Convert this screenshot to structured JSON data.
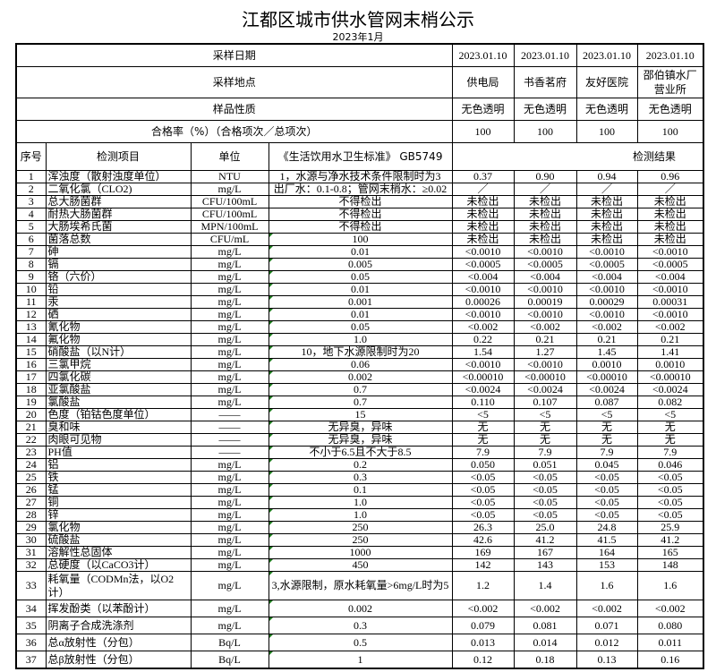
{
  "title": "江都区城市供水管网末梢公示",
  "subtitle": "2023年1月",
  "header": {
    "sample_date_label": "采样日期",
    "sample_dates": [
      "2023.01.10",
      "2023.01.10",
      "2023.01.10",
      "2023.01.10"
    ],
    "sample_site_label": "采样地点",
    "sample_sites": [
      "供电局",
      "书香茗府",
      "友好医院",
      "邵伯镇水厂营业所"
    ],
    "sample_nature_label": "样品性质",
    "sample_natures": [
      "无色透明",
      "无色透明",
      "无色透明",
      "无色透明"
    ],
    "pass_rate_label": "合格率（%）（合格项次／总项次）",
    "pass_rates": [
      "100",
      "100",
      "100",
      "100"
    ],
    "col_seq": "序号",
    "col_item": "检测项目",
    "col_unit": "单位",
    "col_standard": "《生活饮用水卫生标准》 GB5749",
    "col_results": "检测结果"
  },
  "rows": [
    {
      "n": "1",
      "item": "浑浊度（散射浊度单位）",
      "unit": "NTU",
      "std": "1，水源与净水技术条件限制时为3",
      "r": [
        "0.37",
        "0.90",
        "0.94",
        "0.96"
      ]
    },
    {
      "n": "2",
      "item": "二氧化氯（CLO2)",
      "unit": "mg/L",
      "std": "出厂水：0.1-0.8；管网末梢水：≥0.02",
      "r": [
        "／",
        "／",
        "／",
        "／"
      ]
    },
    {
      "n": "3",
      "item": "总大肠菌群",
      "unit": "CFU/100mL",
      "std": "不得检出",
      "r": [
        "未检出",
        "未检出",
        "未检出",
        "未检出"
      ]
    },
    {
      "n": "4",
      "item": "耐热大肠菌群",
      "unit": "CFU/100mL",
      "std": "不得检出",
      "r": [
        "未检出",
        "未检出",
        "未检出",
        "未检出"
      ]
    },
    {
      "n": "5",
      "item": "大肠埃希氏菌",
      "unit": "MPN/100mL",
      "std": "不得检出",
      "r": [
        "未检出",
        "未检出",
        "未检出",
        "未检出"
      ]
    },
    {
      "n": "6",
      "item": "菌落总数",
      "unit": "CFU/mL",
      "std": "100",
      "r": [
        "未检出",
        "未检出",
        "未检出",
        "未检出"
      ]
    },
    {
      "n": "7",
      "item": "砷",
      "unit": "mg/L",
      "std": "0.01",
      "r": [
        "<0.0010",
        "<0.0010",
        "<0.0010",
        "<0.0010"
      ]
    },
    {
      "n": "8",
      "item": "镉",
      "unit": "mg/L",
      "std": "0.005",
      "r": [
        "<0.0005",
        "<0.0005",
        "<0.0005",
        "<0.0005"
      ]
    },
    {
      "n": "9",
      "item": "铬（六价）",
      "unit": "mg/L",
      "std": "0.05",
      "r": [
        "<0.004",
        "<0.004",
        "<0.004",
        "<0.004"
      ]
    },
    {
      "n": "10",
      "item": "铅",
      "unit": "mg/L",
      "std": "0.01",
      "r": [
        "<0.0010",
        "<0.0010",
        "<0.0010",
        "<0.0010"
      ]
    },
    {
      "n": "11",
      "item": "汞",
      "unit": "mg/L",
      "std": "0.001",
      "r": [
        "0.00026",
        "0.00019",
        "0.00029",
        "0.00031"
      ]
    },
    {
      "n": "12",
      "item": "硒",
      "unit": "mg/L",
      "std": "0.01",
      "r": [
        "<0.0010",
        "<0.0010",
        "<0.0010",
        "<0.0010"
      ]
    },
    {
      "n": "13",
      "item": "氰化物",
      "unit": "mg/L",
      "std": "0.05",
      "r": [
        "<0.002",
        "<0.002",
        "<0.002",
        "<0.002"
      ]
    },
    {
      "n": "14",
      "item": "氟化物",
      "unit": "mg/L",
      "std": "1.0",
      "r": [
        "0.22",
        "0.21",
        "0.21",
        "0.21"
      ]
    },
    {
      "n": "15",
      "item": "硝酸盐（以N计）",
      "unit": "mg/L",
      "std": "10，地下水源限制时为20",
      "r": [
        "1.54",
        "1.27",
        "1.45",
        "1.41"
      ]
    },
    {
      "n": "16",
      "item": "三氯甲烷",
      "unit": "mg/L",
      "std": "0.06",
      "r": [
        "<0.0010",
        "<0.0010",
        "0.0010",
        "0.0010"
      ]
    },
    {
      "n": "17",
      "item": "四氯化碳",
      "unit": "mg/L",
      "std": "0.002",
      "r": [
        "<0.00010",
        "<0.00010",
        "<0.00010",
        "<0.00010"
      ]
    },
    {
      "n": "18",
      "item": "亚氯酸盐",
      "unit": "mg/L",
      "std": "0.7",
      "r": [
        "<0.0024",
        "<0.0024",
        "<0.0024",
        "<0.0024"
      ]
    },
    {
      "n": "19",
      "item": "氯酸盐",
      "unit": "mg/L",
      "std": "0.7",
      "r": [
        "0.110",
        "0.107",
        "0.087",
        "0.082"
      ]
    },
    {
      "n": "20",
      "item": "色度（铂钴色度单位）",
      "unit": "——",
      "std": "15",
      "r": [
        "<5",
        "<5",
        "<5",
        "<5"
      ]
    },
    {
      "n": "21",
      "item": "臭和味",
      "unit": "——",
      "std": "无异臭，异味",
      "r": [
        "无",
        "无",
        "无",
        "无"
      ]
    },
    {
      "n": "22",
      "item": "肉眼可见物",
      "unit": "——",
      "std": "无异臭，异味",
      "r": [
        "无",
        "无",
        "无",
        "无"
      ]
    },
    {
      "n": "23",
      "item": "PH值",
      "unit": "——",
      "std": "不小于6.5且不大于8.5",
      "r": [
        "7.9",
        "7.9",
        "7.9",
        "7.9"
      ]
    },
    {
      "n": "24",
      "item": "铝",
      "unit": "mg/L",
      "std": "0.2",
      "r": [
        "0.050",
        "0.051",
        "0.045",
        "0.046"
      ]
    },
    {
      "n": "25",
      "item": "铁",
      "unit": "mg/L",
      "std": "0.3",
      "r": [
        "<0.05",
        "<0.05",
        "<0.05",
        "<0.05"
      ]
    },
    {
      "n": "26",
      "item": "锰",
      "unit": "mg/L",
      "std": "0.1",
      "r": [
        "<0.05",
        "<0.05",
        "<0.05",
        "<0.05"
      ]
    },
    {
      "n": "27",
      "item": "铜",
      "unit": "mg/L",
      "std": "1.0",
      "r": [
        "<0.05",
        "<0.05",
        "<0.05",
        "<0.05"
      ]
    },
    {
      "n": "28",
      "item": "锌",
      "unit": "mg/L",
      "std": "1.0",
      "r": [
        "<0.05",
        "<0.05",
        "<0.05",
        "<0.05"
      ]
    },
    {
      "n": "29",
      "item": "氯化物",
      "unit": "mg/L",
      "std": "250",
      "r": [
        "26.3",
        "25.0",
        "24.8",
        "25.9"
      ]
    },
    {
      "n": "30",
      "item": "硫酸盐",
      "unit": "mg/L",
      "std": "250",
      "r": [
        "42.6",
        "41.2",
        "41.5",
        "41.2"
      ]
    },
    {
      "n": "31",
      "item": "溶解性总固体",
      "unit": "mg/L",
      "std": "1000",
      "r": [
        "169",
        "167",
        "164",
        "165"
      ]
    },
    {
      "n": "32",
      "item": "总硬度（以CaCO3计）",
      "unit": "mg/L",
      "std": "450",
      "r": [
        "142",
        "143",
        "153",
        "148"
      ]
    },
    {
      "n": "33",
      "item": "耗氧量（CODMn法，以O2计）",
      "unit": "mg/L",
      "std": "3,水源限制，原水耗氧量>6mg/L时为5",
      "r": [
        "1.2",
        "1.4",
        "1.6",
        "1.6"
      ]
    },
    {
      "n": "34",
      "item": "挥发酚类（以苯酚计）",
      "unit": "mg/L",
      "std": "0.002",
      "r": [
        "<0.002",
        "<0.002",
        "<0.002",
        "<0.002"
      ]
    },
    {
      "n": "35",
      "item": "阴离子合成洗涤剂",
      "unit": "mg/L",
      "std": "0.3",
      "r": [
        "0.079",
        "0.081",
        "0.071",
        "0.080"
      ]
    },
    {
      "n": "36",
      "item": "总α放射性（分包）",
      "unit": "Bq/L",
      "std": "0.5",
      "r": [
        "0.013",
        "0.014",
        "0.012",
        "0.011"
      ]
    },
    {
      "n": "37",
      "item": "总β放射性（分包）",
      "unit": "Bq/L",
      "std": "1",
      "r": [
        "0.12",
        "0.18",
        "0.13",
        "0.16"
      ]
    }
  ]
}
